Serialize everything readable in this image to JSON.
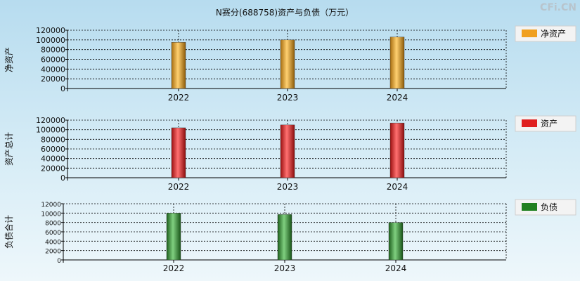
{
  "title": "N赛分(688758)资产与负债（万元）",
  "watermark": "CFi.CN",
  "chart_data": [
    {
      "type": "bar",
      "ylabel": "净资产",
      "legend": "净资产",
      "legend_position": "right",
      "color": "#f0a020",
      "categories": [
        "2022",
        "2023",
        "2024"
      ],
      "values": [
        95000,
        100000,
        106000
      ],
      "ylim": [
        0,
        120000
      ],
      "yticks": [
        "0",
        "20000",
        "40000",
        "60000",
        "80000",
        "100000",
        "120000"
      ],
      "grid": true
    },
    {
      "type": "bar",
      "ylabel": "资产总计",
      "legend": "资产",
      "legend_position": "right",
      "color": "#e02020",
      "categories": [
        "2022",
        "2023",
        "2024"
      ],
      "values": [
        104000,
        110000,
        114000
      ],
      "ylim": [
        0,
        120000
      ],
      "yticks": [
        "0",
        "20000",
        "40000",
        "60000",
        "80000",
        "100000",
        "120000"
      ],
      "grid": true
    },
    {
      "type": "bar",
      "ylabel": "负债合计",
      "legend": "负债",
      "legend_position": "right",
      "color": "#208020",
      "categories": [
        "2022",
        "2023",
        "2024"
      ],
      "values": [
        10000,
        9700,
        8000
      ],
      "ylim": [
        0,
        12000
      ],
      "yticks": [
        "0",
        "2000",
        "4000",
        "6000",
        "8000",
        "10000",
        "12000"
      ],
      "grid": true
    }
  ]
}
